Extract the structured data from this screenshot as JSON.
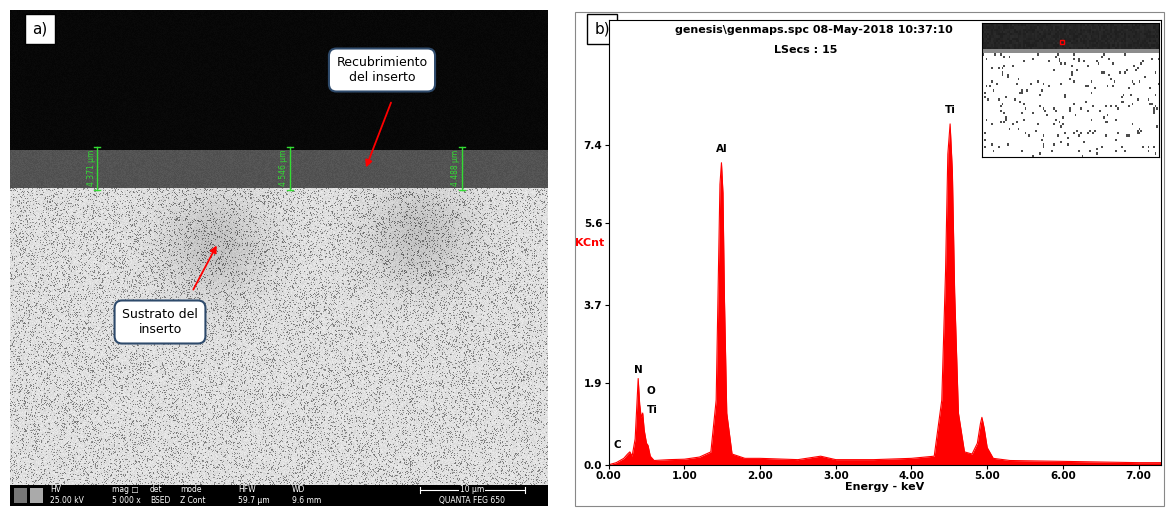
{
  "panel_a": {
    "label": "a)",
    "type": "image",
    "callouts": [
      "Recubrimiento\ndel inserto",
      "Sustrato del\ninserto"
    ],
    "measurements": [
      "4.371 µm",
      "4.546 µm",
      "4.488 µm"
    ],
    "info_bar": {
      "headers": [
        "HV",
        "mag □",
        "det",
        "mode",
        "HFW",
        "WD"
      ],
      "values": [
        "25.00 kV",
        "5 000 x",
        "BSED",
        "Z Cont",
        "59.7 µm",
        "9.6 mm"
      ],
      "scale_bar": "10 µm",
      "instrument": "QUANTA FEG 650"
    }
  },
  "chart_data": {
    "type": "area",
    "panel_label": "b)",
    "title": "genesis\\genmaps.spc 08-May-2018 10:37:10",
    "subtitle": "LSecs : 15",
    "x_label": "Energy - keV",
    "y_label": "KCnt",
    "color": "#ff0000",
    "x": [
      0.0,
      0.1,
      0.2,
      0.25,
      0.28,
      0.31,
      0.35,
      0.37,
      0.39,
      0.41,
      0.43,
      0.45,
      0.47,
      0.5,
      0.52,
      0.55,
      0.6,
      0.8,
      1.0,
      1.2,
      1.35,
      1.42,
      1.45,
      1.47,
      1.49,
      1.51,
      1.53,
      1.56,
      1.63,
      1.8,
      2.0,
      2.5,
      2.8,
      3.0,
      3.5,
      4.0,
      4.3,
      4.4,
      4.45,
      4.48,
      4.51,
      4.54,
      4.57,
      4.62,
      4.7,
      4.8,
      4.87,
      4.91,
      4.93,
      4.96,
      5.0,
      5.08,
      5.3,
      6.0,
      7.0,
      7.3
    ],
    "values": [
      0.0,
      0.05,
      0.15,
      0.25,
      0.3,
      0.2,
      0.6,
      1.3,
      2.0,
      1.4,
      1.1,
      1.2,
      0.8,
      0.5,
      0.45,
      0.2,
      0.1,
      0.12,
      0.13,
      0.18,
      0.3,
      1.5,
      4.5,
      6.5,
      7.0,
      6.3,
      3.8,
      1.2,
      0.25,
      0.15,
      0.15,
      0.12,
      0.2,
      0.12,
      0.12,
      0.15,
      0.2,
      1.5,
      4.5,
      7.2,
      7.9,
      6.8,
      4.0,
      1.2,
      0.3,
      0.25,
      0.5,
      0.95,
      1.1,
      0.85,
      0.4,
      0.15,
      0.1,
      0.08,
      0.05,
      0.05
    ],
    "xlim": [
      0,
      7.3
    ],
    "ylim": [
      0,
      10.3
    ],
    "xticks": [
      {
        "value": 0,
        "label": "0.00"
      },
      {
        "value": 1,
        "label": "1.00"
      },
      {
        "value": 2,
        "label": "2.00"
      },
      {
        "value": 3,
        "label": "3.00"
      },
      {
        "value": 4,
        "label": "4.00"
      },
      {
        "value": 5,
        "label": "5.00"
      },
      {
        "value": 6,
        "label": "6.00"
      },
      {
        "value": 7,
        "label": "7.00"
      }
    ],
    "yticks": [
      0.0,
      1.9,
      3.7,
      5.6,
      7.4
    ],
    "annotations": [
      {
        "text": "C",
        "x": 0.12,
        "y": 0.35
      },
      {
        "text": "N",
        "x": 0.39,
        "y": 2.08
      },
      {
        "text": "O",
        "x": 0.56,
        "y": 1.6
      },
      {
        "text": "Ti",
        "x": 0.58,
        "y": 1.15
      },
      {
        "text": "Al",
        "x": 1.49,
        "y": 7.2
      },
      {
        "text": "Ti",
        "x": 4.51,
        "y": 8.1
      }
    ],
    "grid": false
  }
}
